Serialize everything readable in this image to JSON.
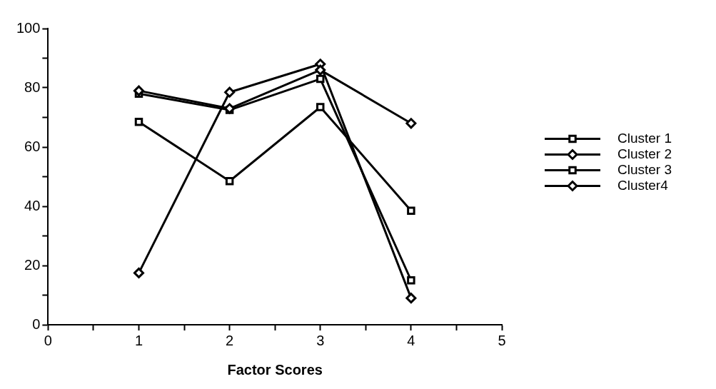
{
  "chart_data": {
    "type": "line",
    "xlabel": "Factor Scores",
    "x": [
      1,
      2,
      3,
      4
    ],
    "series": [
      {
        "name": "Cluster 1",
        "color": "#000000",
        "marker": "square",
        "values": [
          68.5,
          48.5,
          73.5,
          38.5
        ]
      },
      {
        "name": "Cluster 2",
        "color": "#000000",
        "marker": "diamond",
        "values": [
          79,
          73,
          86,
          68
        ]
      },
      {
        "name": "Cluster 3",
        "color": "#000000",
        "marker": "square",
        "values": [
          78,
          72.5,
          83,
          15
        ]
      },
      {
        "name": "Cluster4",
        "color": "#000000",
        "marker": "diamond",
        "values": [
          17.5,
          78.5,
          88,
          9
        ]
      }
    ],
    "xlim": [
      0,
      5
    ],
    "ylim": [
      0,
      100
    ],
    "xticks": [
      0,
      {
        "value": 0.5,
        "label": null
      },
      1,
      {
        "value": 1.5,
        "label": null
      },
      2,
      {
        "value": 2.5,
        "label": null
      },
      3,
      {
        "value": 3.5,
        "label": null
      },
      4,
      {
        "value": 4.5,
        "label": null
      },
      5
    ],
    "yticks": [
      0,
      {
        "value": 10,
        "label": null
      },
      20,
      {
        "value": 30,
        "label": null
      },
      40,
      {
        "value": 50,
        "label": null
      },
      60,
      {
        "value": 70,
        "label": null
      },
      80,
      {
        "value": 90,
        "label": null
      },
      100
    ],
    "grid": false,
    "legend": "right",
    "line_style": "solid"
  }
}
